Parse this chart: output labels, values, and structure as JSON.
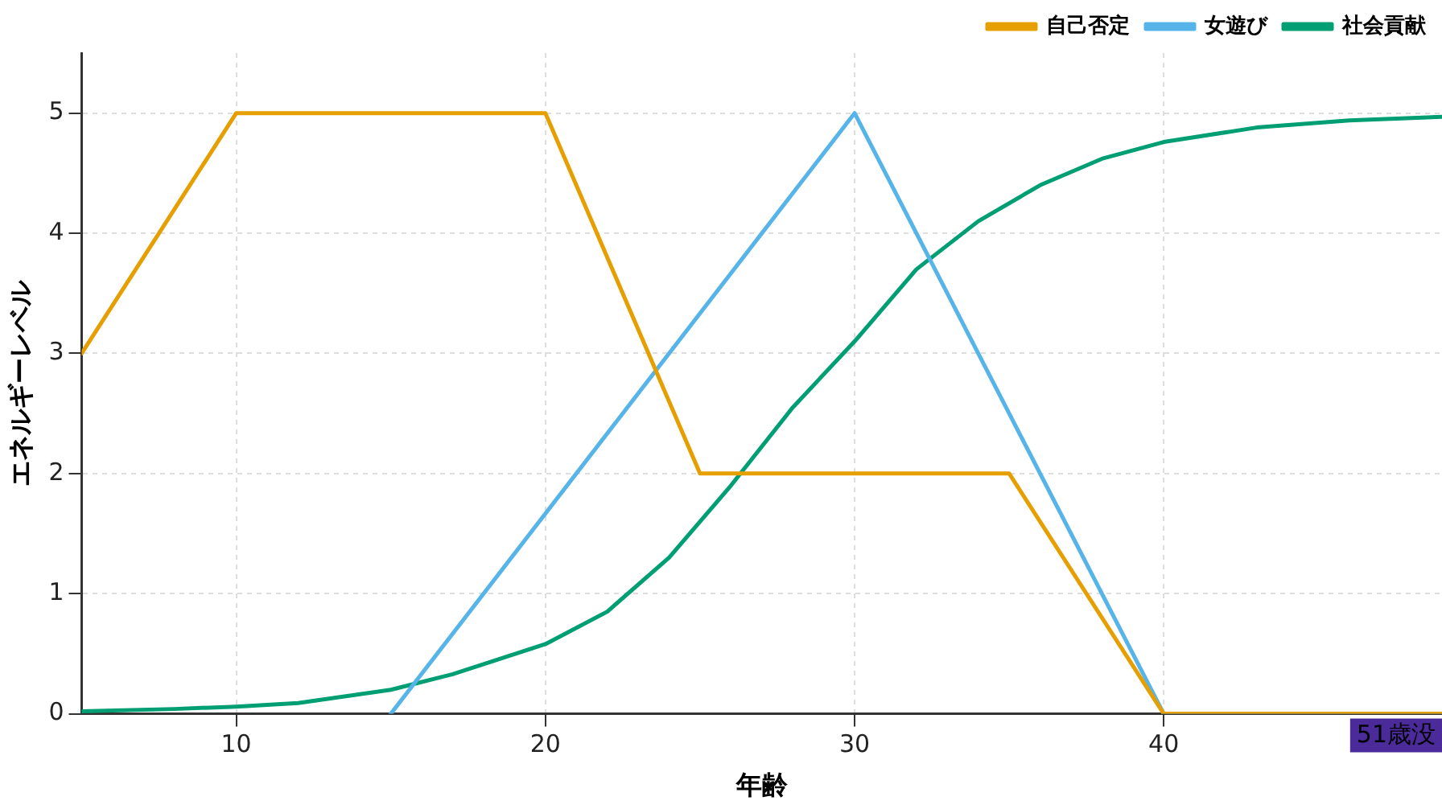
{
  "chart_data": {
    "type": "line",
    "xlabel": "年齢",
    "ylabel": "エネルギーレベル",
    "xlim": [
      5,
      49
    ],
    "xticks": [
      10,
      20,
      30,
      40
    ],
    "ylim": [
      0,
      5.5
    ],
    "yticks": [
      0,
      1,
      2,
      3,
      4,
      5
    ],
    "grid": true,
    "legend": "top right",
    "marker": "none",
    "line_style": "solid",
    "annotations": [
      "51歳没"
    ],
    "series": [
      {
        "name": "自己否定",
        "color": "#e69f00",
        "x": [
          5,
          10,
          20,
          25,
          35,
          40,
          49
        ],
        "values": [
          3,
          5,
          5,
          2,
          2,
          0,
          0
        ]
      },
      {
        "name": "女遊び",
        "color": "#56b4e9",
        "x": [
          15,
          30,
          40,
          49
        ],
        "values": [
          0,
          5,
          0,
          0
        ]
      },
      {
        "name": "社会貢献",
        "color": "#009e73",
        "x": [
          5,
          8,
          10,
          12,
          15,
          17,
          20,
          22,
          24,
          26,
          28,
          30,
          32,
          34,
          36,
          38,
          40,
          43,
          46,
          49
        ],
        "values": [
          0.02,
          0.04,
          0.06,
          0.09,
          0.2,
          0.33,
          0.58,
          0.85,
          1.3,
          1.9,
          2.55,
          3.1,
          3.7,
          4.1,
          4.4,
          4.62,
          4.76,
          4.88,
          4.94,
          4.97
        ]
      }
    ]
  }
}
